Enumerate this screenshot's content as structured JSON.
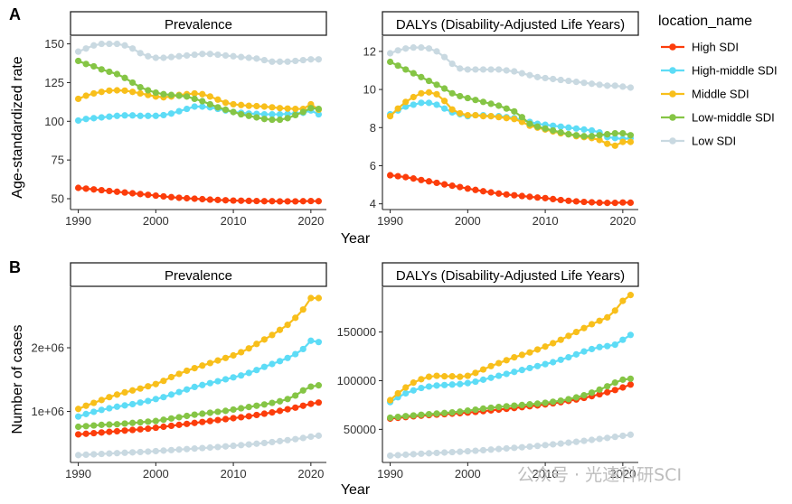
{
  "chart_data": [
    {
      "type": "line",
      "panel": "A",
      "title": "Prevalence",
      "xlabel": "Year",
      "ylabel": "Age-standardized rate",
      "xlim": [
        1989,
        2022
      ],
      "ylim": [
        43,
        155
      ],
      "xticks": [
        1990,
        2000,
        2010,
        2020
      ],
      "yticks": [
        50,
        75,
        100,
        125,
        150
      ],
      "ytick_labels": [
        "50",
        "75",
        "100",
        "125",
        "150"
      ],
      "x": [
        1990,
        1991,
        1992,
        1993,
        1994,
        1995,
        1996,
        1997,
        1998,
        1999,
        2000,
        2001,
        2002,
        2003,
        2004,
        2005,
        2006,
        2007,
        2008,
        2009,
        2010,
        2011,
        2012,
        2013,
        2014,
        2015,
        2016,
        2017,
        2018,
        2019,
        2020,
        2021
      ],
      "series": [
        {
          "name": "High SDI",
          "values": [
            57,
            56.5,
            56,
            55.5,
            55,
            54.5,
            54,
            53.5,
            53,
            52.5,
            52,
            51.5,
            51,
            50.6,
            50.3,
            50,
            49.7,
            49.4,
            49.2,
            49,
            48.8,
            48.7,
            48.6,
            48.5,
            48.4,
            48.4,
            48.3,
            48.3,
            48.3,
            48.4,
            48.5,
            48.4
          ]
        },
        {
          "name": "High-middle SDI",
          "values": [
            100.5,
            101.5,
            102,
            102.5,
            103,
            103.5,
            103.8,
            103.8,
            103.5,
            103.5,
            103.5,
            104,
            105,
            106.5,
            108,
            109.5,
            109.5,
            109,
            108,
            107,
            106,
            105.5,
            105,
            104.8,
            104.5,
            104.5,
            104.5,
            104.8,
            105,
            105.5,
            107,
            104.5
          ]
        },
        {
          "name": "Middle SDI",
          "values": [
            114.5,
            116.5,
            118,
            119,
            119.8,
            120,
            119.8,
            119,
            118,
            117,
            116,
            115.5,
            116,
            117,
            117.5,
            118,
            117.5,
            116,
            114,
            112,
            111,
            110.5,
            110,
            109.8,
            109.5,
            109,
            108.5,
            108.2,
            108,
            108,
            111,
            107.5
          ]
        },
        {
          "name": "Low-middle SDI",
          "values": [
            139,
            137,
            135.5,
            133.5,
            132,
            130.5,
            128,
            125,
            122,
            120,
            118.5,
            117.5,
            117,
            116.5,
            116,
            114.5,
            113,
            111,
            109,
            107.5,
            106,
            104.5,
            103.5,
            102.5,
            101.5,
            101,
            101,
            102,
            104,
            106,
            108.5,
            108
          ]
        },
        {
          "name": "Low SDI",
          "values": [
            145,
            147,
            149,
            150,
            150,
            150,
            149,
            147,
            144,
            142,
            141,
            141,
            141.5,
            142,
            142.5,
            143,
            143.5,
            143.5,
            143,
            142.5,
            142,
            141.5,
            141,
            140.5,
            139.5,
            138.5,
            138.5,
            138.5,
            139,
            139.5,
            140,
            140
          ]
        }
      ]
    },
    {
      "type": "line",
      "panel": "A",
      "title": "DALYs (Disability-Adjusted Life Years)",
      "xlabel": "",
      "ylabel": "",
      "xlim": [
        1989,
        2022
      ],
      "ylim": [
        3.7,
        12.8
      ],
      "xticks": [
        1990,
        2000,
        2010,
        2020
      ],
      "yticks": [
        4,
        6,
        8,
        10,
        12
      ],
      "ytick_labels": [
        "4",
        "6",
        "8",
        "10",
        "12"
      ],
      "x": [
        1990,
        1991,
        1992,
        1993,
        1994,
        1995,
        1996,
        1997,
        1998,
        1999,
        2000,
        2001,
        2002,
        2003,
        2004,
        2005,
        2006,
        2007,
        2008,
        2009,
        2010,
        2011,
        2012,
        2013,
        2014,
        2015,
        2016,
        2017,
        2018,
        2019,
        2020,
        2021
      ],
      "series": [
        {
          "name": "High SDI",
          "values": [
            5.5,
            5.45,
            5.4,
            5.33,
            5.25,
            5.18,
            5.1,
            5.02,
            4.95,
            4.88,
            4.8,
            4.73,
            4.66,
            4.6,
            4.54,
            4.49,
            4.45,
            4.41,
            4.37,
            4.33,
            4.3,
            4.25,
            4.2,
            4.16,
            4.13,
            4.1,
            4.08,
            4.06,
            4.05,
            4.05,
            4.07,
            4.06
          ]
        },
        {
          "name": "High-middle SDI",
          "values": [
            8.7,
            8.9,
            9.1,
            9.2,
            9.3,
            9.3,
            9.2,
            9.0,
            8.8,
            8.7,
            8.6,
            8.65,
            8.65,
            8.6,
            8.6,
            8.55,
            8.5,
            8.4,
            8.3,
            8.2,
            8.15,
            8.1,
            8.05,
            8.0,
            7.95,
            7.9,
            7.85,
            7.75,
            7.5,
            7.45,
            7.4,
            7.45
          ]
        },
        {
          "name": "Middle SDI",
          "values": [
            8.6,
            9.0,
            9.35,
            9.6,
            9.8,
            9.85,
            9.75,
            9.4,
            8.95,
            8.75,
            8.65,
            8.65,
            8.6,
            8.6,
            8.55,
            8.5,
            8.45,
            8.3,
            8.1,
            8.0,
            7.9,
            7.8,
            7.7,
            7.65,
            7.55,
            7.5,
            7.45,
            7.35,
            7.15,
            7.05,
            7.25,
            7.25
          ]
        },
        {
          "name": "Low-middle SDI",
          "values": [
            11.45,
            11.25,
            11.05,
            10.85,
            10.65,
            10.45,
            10.25,
            10.05,
            9.8,
            9.65,
            9.55,
            9.45,
            9.35,
            9.25,
            9.15,
            9.0,
            8.85,
            8.55,
            8.2,
            8.05,
            7.95,
            7.85,
            7.75,
            7.65,
            7.6,
            7.55,
            7.55,
            7.6,
            7.65,
            7.7,
            7.7,
            7.6
          ]
        },
        {
          "name": "Low SDI",
          "values": [
            11.9,
            12.05,
            12.15,
            12.2,
            12.2,
            12.15,
            12.0,
            11.7,
            11.35,
            11.1,
            11.05,
            11.05,
            11.05,
            11.05,
            11.05,
            11.0,
            10.95,
            10.85,
            10.75,
            10.65,
            10.6,
            10.55,
            10.5,
            10.45,
            10.4,
            10.35,
            10.3,
            10.25,
            10.2,
            10.2,
            10.15,
            10.1
          ]
        }
      ]
    },
    {
      "type": "line",
      "panel": "B",
      "title": "Prevalence",
      "xlabel": "",
      "ylabel": "Number of cases",
      "xlim": [
        1989,
        2022
      ],
      "ylim": [
        200000,
        2950000
      ],
      "xticks": [
        1990,
        2000,
        2010,
        2020
      ],
      "yticks": [
        1000000,
        2000000
      ],
      "ytick_labels": [
        "1e+06",
        "2e+06"
      ],
      "x": [
        1990,
        1991,
        1992,
        1993,
        1994,
        1995,
        1996,
        1997,
        1998,
        1999,
        2000,
        2001,
        2002,
        2003,
        2004,
        2005,
        2006,
        2007,
        2008,
        2009,
        2010,
        2011,
        2012,
        2013,
        2014,
        2015,
        2016,
        2017,
        2018,
        2019,
        2020,
        2021
      ],
      "series": [
        {
          "name": "High SDI",
          "values": [
            640000,
            650000,
            660000,
            670000,
            680000,
            690000,
            700000,
            710000,
            720000,
            730000,
            745000,
            760000,
            775000,
            790000,
            805000,
            820000,
            835000,
            850000,
            865000,
            880000,
            895000,
            910000,
            925000,
            945000,
            965000,
            985000,
            1010000,
            1035000,
            1060000,
            1090000,
            1120000,
            1140000
          ]
        },
        {
          "name": "High-middle SDI",
          "values": [
            920000,
            960000,
            995000,
            1025000,
            1050000,
            1075000,
            1095000,
            1115000,
            1140000,
            1165000,
            1195000,
            1225000,
            1265000,
            1305000,
            1345000,
            1385000,
            1415000,
            1445000,
            1475000,
            1505000,
            1535000,
            1565000,
            1605000,
            1650000,
            1700000,
            1745000,
            1790000,
            1840000,
            1900000,
            1980000,
            2110000,
            2090000
          ]
        },
        {
          "name": "Middle SDI",
          "values": [
            1040000,
            1090000,
            1135000,
            1180000,
            1225000,
            1265000,
            1300000,
            1330000,
            1360000,
            1395000,
            1430000,
            1480000,
            1540000,
            1590000,
            1640000,
            1680000,
            1720000,
            1760000,
            1800000,
            1840000,
            1880000,
            1930000,
            1990000,
            2060000,
            2130000,
            2200000,
            2280000,
            2360000,
            2470000,
            2600000,
            2780000,
            2780000
          ]
        },
        {
          "name": "Low-middle SDI",
          "values": [
            760000,
            770000,
            780000,
            790000,
            795000,
            800000,
            810000,
            820000,
            830000,
            840000,
            850000,
            870000,
            890000,
            910000,
            930000,
            950000,
            965000,
            980000,
            995000,
            1010000,
            1030000,
            1050000,
            1070000,
            1090000,
            1110000,
            1135000,
            1160000,
            1195000,
            1250000,
            1330000,
            1390000,
            1410000
          ]
        },
        {
          "name": "Low SDI",
          "values": [
            315000,
            322000,
            328000,
            334000,
            340000,
            346000,
            352000,
            358000,
            364000,
            370000,
            378000,
            386000,
            394000,
            402000,
            410000,
            418000,
            426000,
            434000,
            442000,
            452000,
            462000,
            472000,
            482000,
            494000,
            506000,
            520000,
            535000,
            550000,
            566000,
            584000,
            605000,
            620000
          ]
        }
      ]
    },
    {
      "type": "line",
      "panel": "B",
      "title": "DALYs (Disability-Adjusted Life Years)",
      "xlabel": "Year",
      "ylabel": "",
      "xlim": [
        1989,
        2022
      ],
      "ylim": [
        16000,
        196000
      ],
      "xticks": [
        1990,
        2000,
        2010,
        2020
      ],
      "yticks": [
        50000,
        100000,
        150000
      ],
      "ytick_labels": [
        "50000",
        "100000",
        "150000"
      ],
      "x": [
        1990,
        1991,
        1992,
        1993,
        1994,
        1995,
        1996,
        1997,
        1998,
        1999,
        2000,
        2001,
        2002,
        2003,
        2004,
        2005,
        2006,
        2007,
        2008,
        2009,
        2010,
        2011,
        2012,
        2013,
        2014,
        2015,
        2016,
        2017,
        2018,
        2019,
        2020,
        2021
      ],
      "series": [
        {
          "name": "High SDI",
          "values": [
            61000,
            61800,
            62600,
            63400,
            64000,
            64600,
            65100,
            65600,
            66100,
            66600,
            67200,
            67900,
            68700,
            69500,
            70300,
            71100,
            71900,
            72800,
            73700,
            74600,
            75600,
            76700,
            77900,
            79200,
            80700,
            82300,
            84100,
            86000,
            88100,
            90400,
            93000,
            96000
          ]
        },
        {
          "name": "High-middle SDI",
          "values": [
            78000,
            83000,
            87000,
            90000,
            92500,
            94000,
            95000,
            95500,
            96000,
            96500,
            97500,
            99000,
            101000,
            103000,
            105000,
            107000,
            109000,
            111000,
            113000,
            115000,
            117000,
            119000,
            121500,
            124000,
            127000,
            130000,
            132500,
            134500,
            135500,
            137000,
            142000,
            147000
          ]
        },
        {
          "name": "Middle SDI",
          "values": [
            80000,
            87000,
            93000,
            98000,
            101500,
            104000,
            105000,
            104500,
            104500,
            104000,
            105000,
            108000,
            111500,
            115000,
            118000,
            121000,
            124000,
            126500,
            129000,
            132000,
            135000,
            138500,
            142000,
            146000,
            150000,
            154000,
            158000,
            161500,
            165000,
            172000,
            182000,
            188000
          ]
        },
        {
          "name": "Low-middle SDI",
          "values": [
            62000,
            62800,
            63600,
            64300,
            65000,
            65600,
            66200,
            66800,
            67400,
            68200,
            69200,
            70200,
            71300,
            72200,
            73000,
            73700,
            74400,
            75000,
            75700,
            76400,
            77300,
            78300,
            79500,
            81000,
            82800,
            85000,
            87700,
            90800,
            94200,
            98000,
            101000,
            102000
          ]
        },
        {
          "name": "Low SDI",
          "values": [
            23000,
            23500,
            24000,
            24500,
            25000,
            25400,
            25800,
            26200,
            26600,
            27000,
            27500,
            28000,
            28600,
            29200,
            29800,
            30400,
            31000,
            31600,
            32300,
            33000,
            33800,
            34600,
            35400,
            36300,
            37200,
            38200,
            39200,
            40200,
            41200,
            42300,
            43400,
            44500
          ]
        }
      ]
    }
  ],
  "figure": {
    "panel_labels": [
      "A",
      "B"
    ],
    "legend": {
      "title": "location_name",
      "position": "right",
      "items": [
        {
          "name": "High SDI",
          "color": "#fc3d0b"
        },
        {
          "name": "High-middle SDI",
          "color": "#5ddcf6"
        },
        {
          "name": "Middle SDI",
          "color": "#f8bf1b"
        },
        {
          "name": "Low-middle SDI",
          "color": "#85c545"
        },
        {
          "name": "Low SDI",
          "color": "#c9d9e1"
        }
      ]
    },
    "watermark": "公众号 · 光速科研SCI"
  }
}
